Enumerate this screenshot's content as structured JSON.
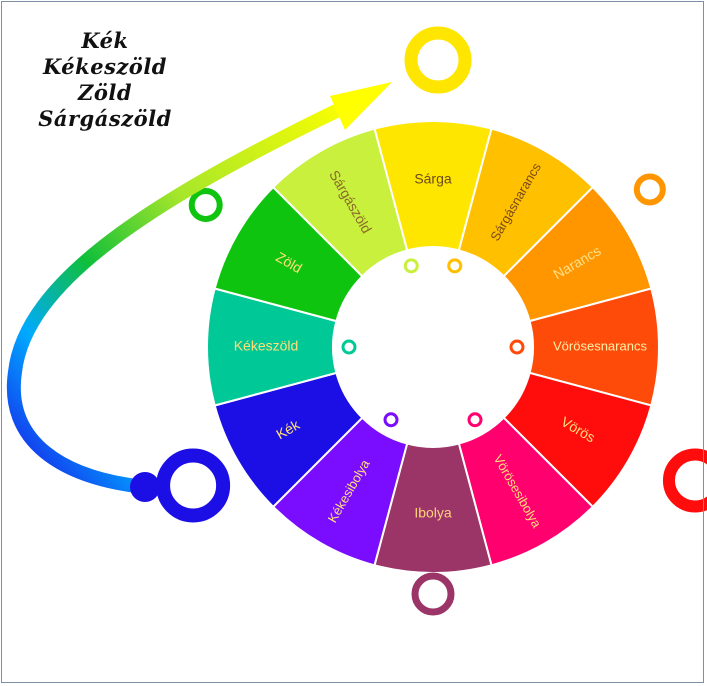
{
  "legend": {
    "lines": [
      "Kék",
      "Kékeszöld",
      "Zöld",
      "Sárgászöld"
    ]
  },
  "wheel": {
    "segments": [
      {
        "label": "Sárga",
        "color": "#ffe600",
        "text_color": "#6b4a1a"
      },
      {
        "label": "Sárgásnarancs",
        "color": "#ffc000",
        "text_color": "#7a4a1a"
      },
      {
        "label": "Narancs",
        "color": "#ff9600",
        "text_color": "#ffe08a"
      },
      {
        "label": "Vörösesnarancs",
        "color": "#ff4b0a",
        "text_color": "#fff1a8"
      },
      {
        "label": "Vörös",
        "color": "#ff0d0d",
        "text_color": "#ffe07a"
      },
      {
        "label": "Vörösesibolya",
        "color": "#ff006e",
        "text_color": "#ffe07a"
      },
      {
        "label": "Ibolya",
        "color": "#9b3467",
        "text_color": "#ffd27a"
      },
      {
        "label": "Kékesibolya",
        "color": "#7a0cff",
        "text_color": "#ffe07a"
      },
      {
        "label": "Kék",
        "color": "#1b0fe6",
        "text_color": "#ffe07a"
      },
      {
        "label": "Kékeszöld",
        "color": "#00c896",
        "text_color": "#ffe07a"
      },
      {
        "label": "Zöld",
        "color": "#0fc40f",
        "text_color": "#ffe07a"
      },
      {
        "label": "Sárgászöld",
        "color": "#c8f03c",
        "text_color": "#8a6a2a"
      }
    ]
  },
  "colors": {
    "arrow_start": "#1b0fe6",
    "arrow_end": "#ffff00",
    "frame": "#7f8fa6"
  }
}
